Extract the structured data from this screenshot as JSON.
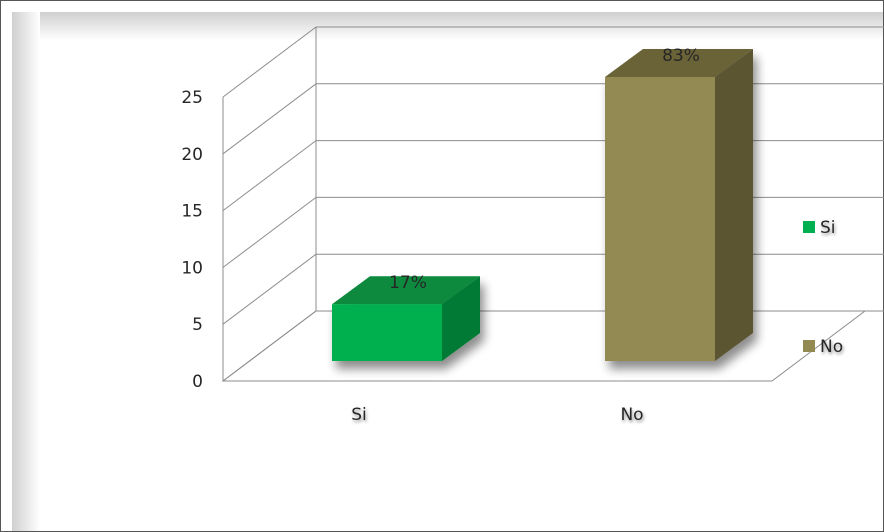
{
  "chart_data": {
    "type": "bar",
    "title": "",
    "xlabel": "",
    "ylabel": "",
    "categories": [
      "Si",
      "No"
    ],
    "values": [
      5,
      25
    ],
    "data_labels": [
      "17%",
      "83%"
    ],
    "series": [
      {
        "name": "Si",
        "values": [
          5,
          null
        ],
        "color": "#00b050"
      },
      {
        "name": "No",
        "values": [
          null,
          25
        ],
        "color": "#938953"
      }
    ],
    "ylim": [
      0,
      25
    ],
    "yticks": [
      0,
      5,
      10,
      15,
      20,
      25
    ],
    "grid": true,
    "three_d": true,
    "legend": {
      "position": "right",
      "entries": [
        {
          "label": "Si",
          "color": "#00b050"
        },
        {
          "label": "No",
          "color": "#938953"
        }
      ]
    }
  }
}
